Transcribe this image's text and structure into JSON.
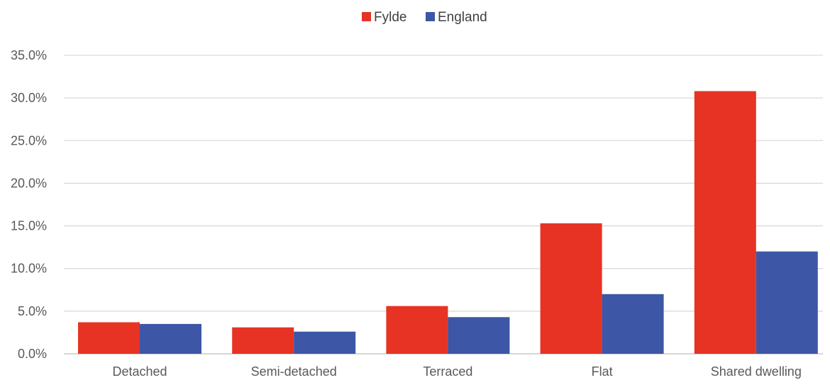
{
  "chart_data": {
    "type": "bar",
    "title": "",
    "xlabel": "",
    "ylabel": "",
    "categories": [
      "Detached",
      "Semi-detached",
      "Terraced",
      "Flat",
      "Shared dwelling"
    ],
    "series": [
      {
        "name": "Fylde",
        "color": "#E63323",
        "values": [
          3.7,
          3.1,
          5.6,
          15.3,
          30.8
        ]
      },
      {
        "name": "England",
        "color": "#3D56A6",
        "values": [
          3.5,
          2.6,
          4.3,
          7.0,
          12.0
        ]
      }
    ],
    "ylim": [
      0,
      35
    ],
    "yticks": [
      "0.0%",
      "5.0%",
      "10.0%",
      "15.0%",
      "20.0%",
      "25.0%",
      "30.0%",
      "35.0%"
    ],
    "grid": true,
    "legend": "top-center"
  }
}
